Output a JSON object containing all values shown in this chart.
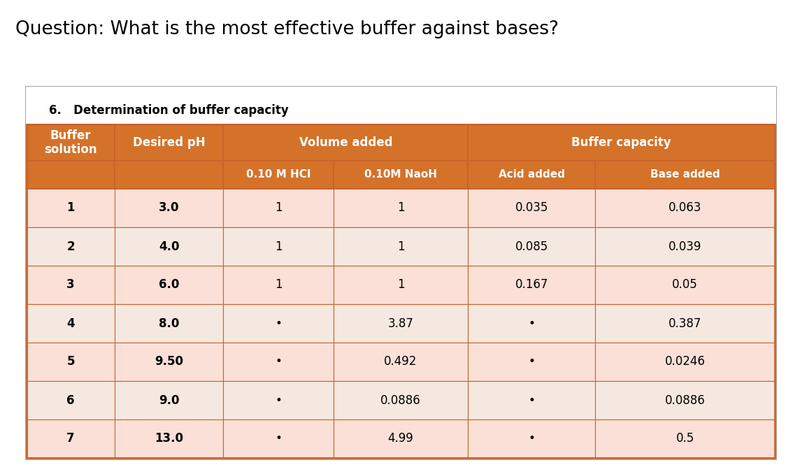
{
  "question": "Question: What is the most effective buffer against bases?",
  "table_title": "6.   Determination of buffer capacity",
  "orange": "#D4722A",
  "row_pink1": "#FAE0D6",
  "row_pink2": "#F5E8E0",
  "background": "#FFFFFF",
  "border_color": "#C8622A",
  "rows": [
    [
      "1",
      "3.0",
      "1",
      "1",
      "0.035",
      "0.063"
    ],
    [
      "2",
      "4.0",
      "1",
      "1",
      "0.085",
      "0.039"
    ],
    [
      "3",
      "6.0",
      "1",
      "1",
      "0.167",
      "0.05"
    ],
    [
      "4",
      "8.0",
      "•",
      "3.87",
      "•",
      "0.387"
    ],
    [
      "5",
      "9.50",
      "•",
      "0.492",
      "•",
      "0.0246"
    ],
    [
      "6",
      "9.0",
      "•",
      "0.0886",
      "•",
      "0.0886"
    ],
    [
      "7",
      "13.0",
      "•",
      "4.99",
      "•",
      "0.5"
    ]
  ],
  "question_fontsize": 19,
  "title_fontsize": 12,
  "header_fontsize": 12,
  "cell_fontsize": 12
}
